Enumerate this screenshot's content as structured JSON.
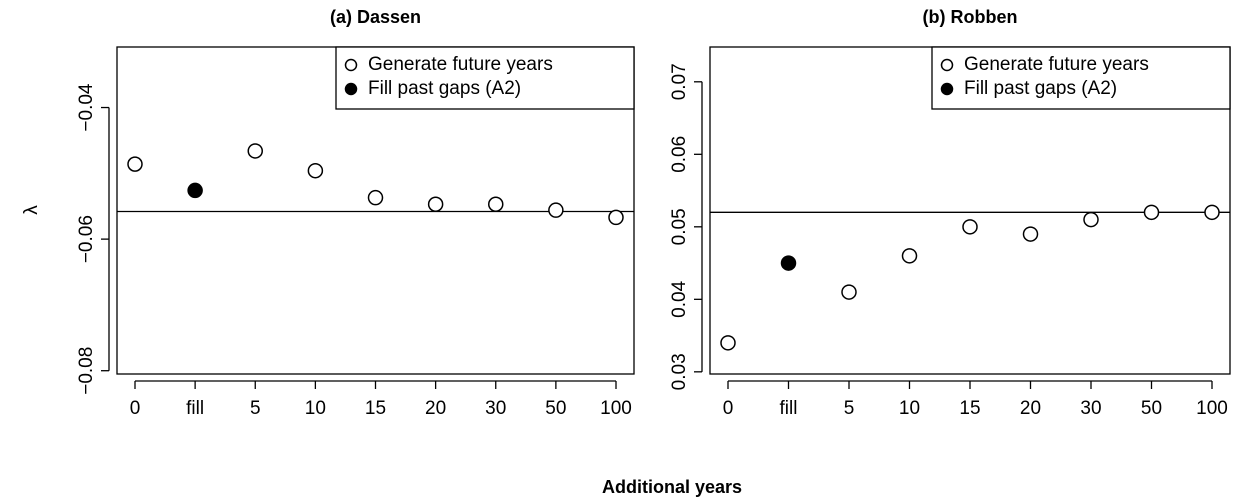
{
  "xlabel": "Additional years",
  "chart_data": [
    {
      "type": "scatter",
      "title": "(a) Dassen",
      "ylabel": "λ",
      "categories": [
        "0",
        "fill",
        "5",
        "10",
        "15",
        "20",
        "30",
        "50",
        "100"
      ],
      "series": [
        {
          "name": "Generate future years",
          "color": "#000000",
          "filled": false,
          "values": [
            -0.0486,
            null,
            -0.0466,
            -0.0496,
            -0.0537,
            -0.0547,
            -0.0547,
            -0.0556,
            -0.0567
          ]
        },
        {
          "name": "Fill past gaps (A2)",
          "color": "#000000",
          "filled": true,
          "values": [
            null,
            -0.0526,
            null,
            null,
            null,
            null,
            null,
            null,
            null
          ]
        }
      ],
      "hline": -0.0558,
      "ylim": [
        -0.0805,
        -0.0308
      ],
      "yticks": [
        {
          "value": -0.08,
          "label": "−0.08"
        },
        {
          "value": -0.06,
          "label": "−0.06"
        },
        {
          "value": -0.04,
          "label": "−0.04"
        }
      ],
      "legend": "top-right"
    },
    {
      "type": "scatter",
      "title": "(b) Robben",
      "categories": [
        "0",
        "fill",
        "5",
        "10",
        "15",
        "20",
        "30",
        "50",
        "100"
      ],
      "series": [
        {
          "name": "Generate future years",
          "color": "#000000",
          "filled": false,
          "values": [
            0.034,
            null,
            0.041,
            0.046,
            0.05,
            0.049,
            0.051,
            0.052,
            0.052
          ]
        },
        {
          "name": "Fill past gaps (A2)",
          "color": "#000000",
          "filled": true,
          "values": [
            null,
            0.045,
            null,
            null,
            null,
            null,
            null,
            null,
            null
          ]
        }
      ],
      "hline": 0.052,
      "ylim": [
        0.0297,
        0.0748
      ],
      "yticks": [
        0.03,
        0.04,
        0.05,
        0.06,
        0.07
      ],
      "legend": "top-right"
    }
  ]
}
